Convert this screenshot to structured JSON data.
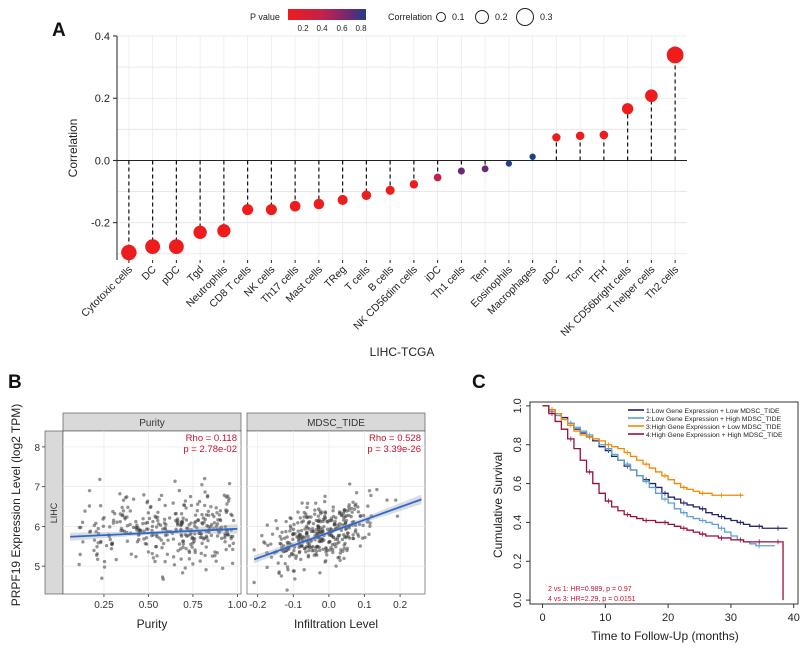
{
  "panels": {
    "a": "A",
    "b": "B",
    "c": "C"
  },
  "colors": {
    "p_low": "#ee1c1c",
    "p_mid": "#c2224a",
    "p_high": "#6a2a73",
    "p_max": "#1f3f8a",
    "regression": "#2a69d6",
    "annotation": "#c8102e",
    "km1": "#23236a",
    "km2": "#5aa0d2",
    "km3": "#f08a00",
    "km4": "#9b0f3a"
  },
  "chart_data": [
    {
      "id": "A",
      "type": "scatter",
      "subtype": "lollipop",
      "title": "",
      "xlabel": "LIHC-TCGA",
      "ylabel": "Correlation",
      "ylim": [
        -0.32,
        0.4
      ],
      "yticks": [
        -0.2,
        0.0,
        0.2,
        0.4
      ],
      "ytick_labels": [
        "-0.2",
        "0.0",
        "0.2",
        "0.4"
      ],
      "grid": true,
      "legend": {
        "pvalue_title": "P value",
        "pvalue_ticks": [
          "0.2",
          "0.4",
          "0.6",
          "0.8"
        ],
        "size_title": "Correlation",
        "size_ticks": [
          "0.1",
          "0.2",
          "0.3"
        ]
      },
      "categories": [
        "Cytotoxic cells",
        "DC",
        "pDC",
        "Tgd",
        "Neutrophils",
        "CD8 T cells",
        "NK cells",
        "Th17 cells",
        "Mast cells",
        "TReg",
        "T cells",
        "B cells",
        "NK CD56dim cells",
        "iDC",
        "Th1 cells",
        "Tem",
        "Eosinophils",
        "Macrophages",
        "aDC",
        "Tcm",
        "TFH",
        "NK CD56bright cells",
        "T helper cells",
        "Th2 cells"
      ],
      "values": [
        -0.296,
        -0.277,
        -0.277,
        -0.231,
        -0.226,
        -0.158,
        -0.158,
        -0.147,
        -0.14,
        -0.127,
        -0.112,
        -0.096,
        -0.077,
        -0.055,
        -0.034,
        -0.027,
        -0.01,
        0.012,
        0.074,
        0.079,
        0.082,
        0.166,
        0.208,
        0.339
      ],
      "pvalues": [
        0.001,
        0.001,
        0.001,
        0.001,
        0.001,
        0.002,
        0.002,
        0.004,
        0.006,
        0.014,
        0.03,
        0.064,
        0.14,
        0.29,
        0.52,
        0.6,
        0.85,
        0.82,
        0.15,
        0.13,
        0.11,
        0.001,
        0.001,
        0.001
      ]
    },
    {
      "id": "B-purity",
      "type": "scatter",
      "strip": "Purity",
      "row_label": "LIHC",
      "xlabel": "Purity",
      "ylabel": "PRPF19 Expression Level (log2 TPM)",
      "xlim": [
        0.02,
        1.02
      ],
      "ylim": [
        4.3,
        8.4
      ],
      "xticks": [
        0.25,
        0.5,
        0.75,
        1.0
      ],
      "xtick_labels": [
        "0.25",
        "0.50",
        "0.75",
        "1.00"
      ],
      "yticks": [
        5,
        6,
        7,
        8
      ],
      "ytick_labels": [
        "5",
        "6",
        "7",
        "8"
      ],
      "rho": "Rho = 0.118",
      "p": "p = 2.78e-02",
      "regression": {
        "x": [
          0.06,
          1.0
        ],
        "y": [
          5.74,
          5.94
        ]
      },
      "n_points": 340
    },
    {
      "id": "B-mdsc",
      "type": "scatter",
      "strip": "MDSC_TIDE",
      "xlabel": "Infiltration Level",
      "xlim": [
        -0.23,
        0.27
      ],
      "ylim": [
        4.3,
        8.4
      ],
      "xticks": [
        -0.2,
        -0.1,
        0.0,
        0.1,
        0.2
      ],
      "xtick_labels": [
        "-0.2",
        "-0.1",
        "0.0",
        "0.1",
        "0.2"
      ],
      "rho": "Rho = 0.528",
      "p": "p = 3.39e-26",
      "regression": {
        "x": [
          -0.21,
          0.26
        ],
        "y": [
          5.17,
          6.68
        ]
      },
      "n_points": 370
    },
    {
      "id": "C",
      "type": "line",
      "subtype": "kaplan-meier",
      "xlabel": "Time to Follow-Up (months)",
      "ylabel": "Cumulative Survival",
      "xlim": [
        -2,
        41
      ],
      "ylim": [
        -0.02,
        1.02
      ],
      "xticks": [
        0,
        10,
        20,
        30,
        40
      ],
      "xtick_labels": [
        "0",
        "10",
        "20",
        "30",
        "40"
      ],
      "yticks": [
        0.0,
        0.2,
        0.4,
        0.6,
        0.8,
        1.0
      ],
      "ytick_labels": [
        "0.0",
        "0.2",
        "0.4",
        "0.6",
        "0.8",
        "1.0"
      ],
      "legend_position": "top-right",
      "stats": [
        "2 vs 1: HR=0.989, p = 0.97",
        "4 vs 3: HR=2.29, p = 0.0151"
      ],
      "series": [
        {
          "name": "1:Low Gene Expression + Low MDSC_TIDE",
          "x": [
            0,
            1,
            2,
            3,
            4,
            5,
            6,
            7,
            8,
            9,
            10,
            11,
            12,
            13,
            14,
            15,
            16,
            17,
            18,
            19,
            20,
            21,
            22,
            23,
            24,
            25,
            26,
            27,
            28,
            29,
            30,
            31,
            32,
            33,
            34,
            35,
            36,
            37,
            38,
            39
          ],
          "y": [
            1.0,
            0.98,
            0.96,
            0.94,
            0.91,
            0.88,
            0.86,
            0.84,
            0.82,
            0.79,
            0.77,
            0.74,
            0.72,
            0.69,
            0.67,
            0.64,
            0.62,
            0.6,
            0.58,
            0.55,
            0.53,
            0.52,
            0.5,
            0.49,
            0.48,
            0.47,
            0.45,
            0.44,
            0.43,
            0.42,
            0.41,
            0.4,
            0.39,
            0.38,
            0.38,
            0.37,
            0.37,
            0.37,
            0.37,
            0.37
          ]
        },
        {
          "name": "2:Low Gene Expression + High MDSC_TIDE",
          "x": [
            0,
            1,
            2,
            3,
            4,
            5,
            6,
            7,
            8,
            9,
            10,
            11,
            12,
            13,
            14,
            15,
            16,
            17,
            18,
            19,
            20,
            21,
            22,
            23,
            24,
            25,
            26,
            27,
            28,
            29,
            30,
            31,
            32,
            33,
            34,
            35,
            36,
            37
          ],
          "y": [
            1.0,
            0.97,
            0.95,
            0.93,
            0.91,
            0.89,
            0.87,
            0.85,
            0.83,
            0.8,
            0.78,
            0.75,
            0.72,
            0.7,
            0.67,
            0.64,
            0.61,
            0.58,
            0.55,
            0.52,
            0.5,
            0.47,
            0.45,
            0.43,
            0.42,
            0.41,
            0.4,
            0.39,
            0.37,
            0.35,
            0.33,
            0.31,
            0.3,
            0.29,
            0.28,
            0.28,
            0.28,
            0.28
          ]
        },
        {
          "name": "3:High Gene Expression + Low MDSC_TIDE",
          "x": [
            0,
            1,
            2,
            3,
            4,
            5,
            6,
            7,
            8,
            9,
            10,
            11,
            12,
            13,
            14,
            15,
            16,
            17,
            18,
            19,
            20,
            21,
            22,
            23,
            24,
            25,
            26,
            27,
            28,
            29,
            30,
            31,
            32
          ],
          "y": [
            1.0,
            0.98,
            0.96,
            0.93,
            0.9,
            0.87,
            0.85,
            0.84,
            0.83,
            0.82,
            0.8,
            0.79,
            0.78,
            0.76,
            0.74,
            0.72,
            0.7,
            0.68,
            0.66,
            0.64,
            0.62,
            0.6,
            0.58,
            0.57,
            0.56,
            0.55,
            0.55,
            0.54,
            0.54,
            0.54,
            0.54,
            0.54,
            0.54
          ]
        },
        {
          "name": "4:High Gene Expression + High MDSC_TIDE",
          "x": [
            0,
            1,
            2,
            3,
            4,
            5,
            6,
            7,
            8,
            9,
            10,
            11,
            12,
            13,
            14,
            15,
            16,
            17,
            18,
            19,
            20,
            21,
            22,
            23,
            24,
            25,
            26,
            27,
            28,
            29,
            30,
            31,
            32,
            33,
            34,
            35,
            36,
            37,
            38,
            38.3
          ],
          "y": [
            1.0,
            0.96,
            0.92,
            0.88,
            0.83,
            0.78,
            0.72,
            0.66,
            0.6,
            0.55,
            0.51,
            0.48,
            0.46,
            0.44,
            0.43,
            0.42,
            0.41,
            0.41,
            0.4,
            0.4,
            0.39,
            0.38,
            0.37,
            0.36,
            0.35,
            0.34,
            0.33,
            0.33,
            0.32,
            0.32,
            0.31,
            0.31,
            0.3,
            0.3,
            0.3,
            0.3,
            0.3,
            0.3,
            0.3,
            0.0
          ]
        }
      ]
    }
  ]
}
